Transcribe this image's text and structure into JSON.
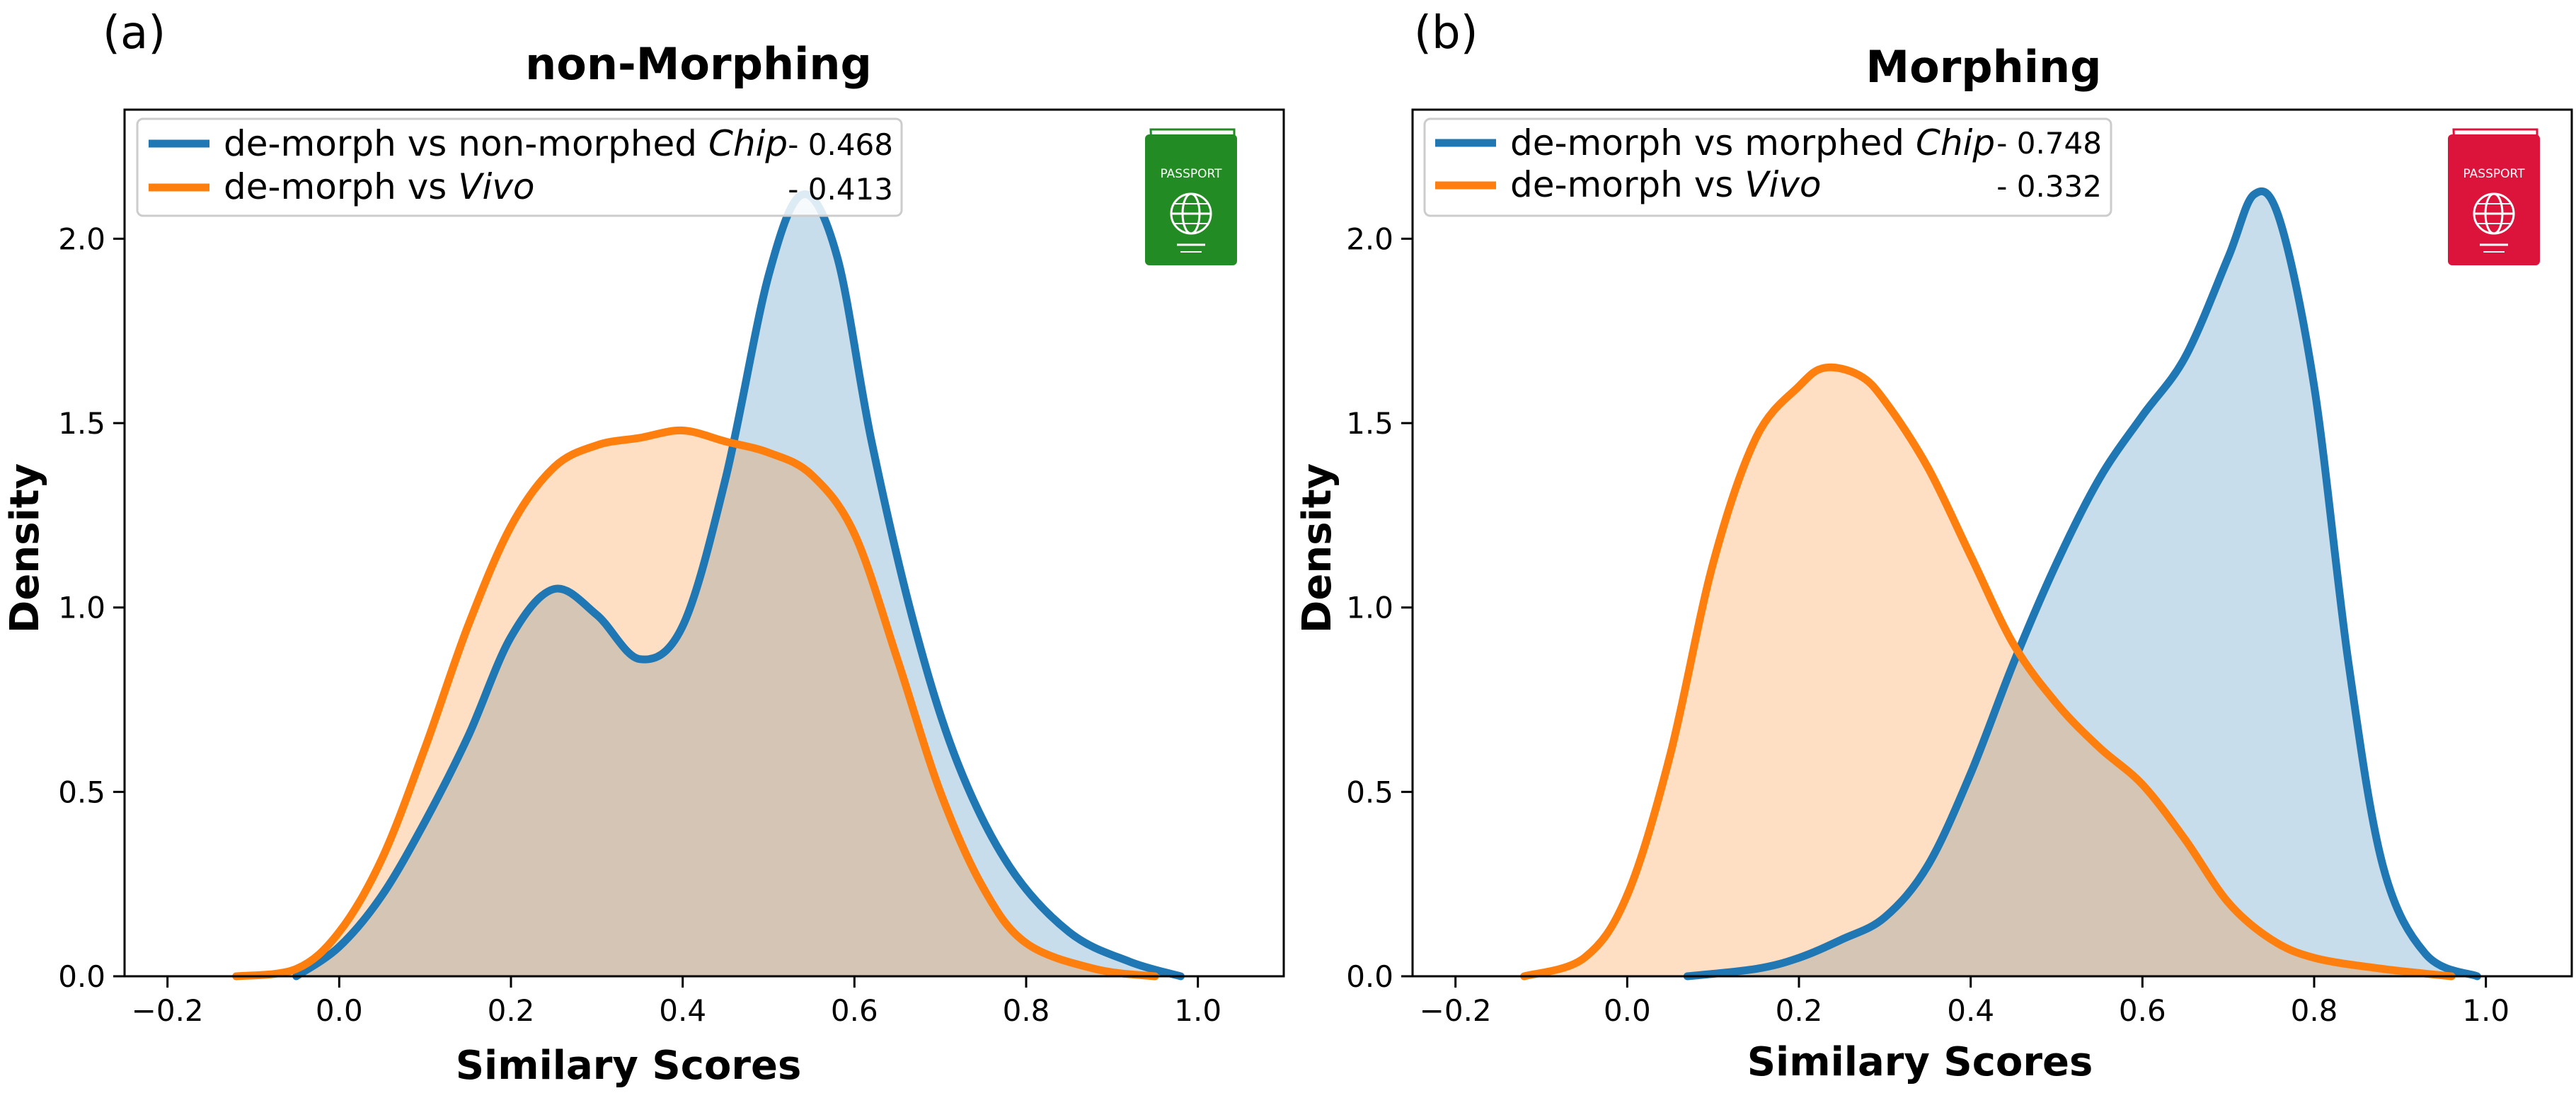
{
  "colors": {
    "series_blue": "#1f77b4",
    "series_orange": "#ff7f0e",
    "fill_blue": "#c6dcec",
    "fill_orange": "#fdd9bb",
    "fill_overlap": "#d4c3b3",
    "passport_green": "#238b23",
    "passport_red": "#dc143c"
  },
  "icons": {
    "a": {
      "name": "passport-icon",
      "label": "PASSPORT",
      "color": "#238b23"
    },
    "b": {
      "name": "passport-icon",
      "label": "PASSPORT",
      "color": "#dc143c"
    }
  },
  "chart_data": [
    {
      "panel_label": "(a)",
      "type": "area",
      "title": "non-Morphing",
      "xlabel": "Similary Scores",
      "ylabel": "Density",
      "xlim": [
        -0.25,
        1.1
      ],
      "ylim": [
        0,
        2.35
      ],
      "xticks": [
        -0.2,
        0.0,
        0.2,
        0.4,
        0.6,
        0.8,
        1.0
      ],
      "xtick_labels": [
        "−0.2",
        "0.0",
        "0.2",
        "0.4",
        "0.6",
        "0.8",
        "1.0"
      ],
      "yticks": [
        0.0,
        0.5,
        1.0,
        1.5,
        2.0
      ],
      "ytick_labels": [
        "0.0",
        "0.5",
        "1.0",
        "1.5",
        "2.0"
      ],
      "grid": false,
      "legend_position": "top-left",
      "series": [
        {
          "name_prefix": "de-morph vs non-morphed ",
          "name_italic": "Chip",
          "score": "- 0.468",
          "color": "#1f77b4",
          "points": [
            [
              -0.05,
              0.0
            ],
            [
              0.0,
              0.08
            ],
            [
              0.05,
              0.22
            ],
            [
              0.1,
              0.42
            ],
            [
              0.15,
              0.65
            ],
            [
              0.2,
              0.92
            ],
            [
              0.25,
              1.05
            ],
            [
              0.3,
              0.98
            ],
            [
              0.35,
              0.86
            ],
            [
              0.4,
              0.95
            ],
            [
              0.45,
              1.35
            ],
            [
              0.5,
              1.9
            ],
            [
              0.54,
              2.12
            ],
            [
              0.58,
              1.95
            ],
            [
              0.62,
              1.45
            ],
            [
              0.67,
              0.95
            ],
            [
              0.72,
              0.58
            ],
            [
              0.78,
              0.3
            ],
            [
              0.85,
              0.12
            ],
            [
              0.92,
              0.04
            ],
            [
              0.98,
              0.0
            ]
          ]
        },
        {
          "name_prefix": "de-morph vs ",
          "name_italic": "Vivo",
          "score": "- 0.413",
          "color": "#ff7f0e",
          "points": [
            [
              -0.12,
              0.0
            ],
            [
              -0.05,
              0.02
            ],
            [
              0.0,
              0.12
            ],
            [
              0.05,
              0.32
            ],
            [
              0.1,
              0.62
            ],
            [
              0.15,
              0.95
            ],
            [
              0.2,
              1.22
            ],
            [
              0.25,
              1.38
            ],
            [
              0.3,
              1.44
            ],
            [
              0.35,
              1.46
            ],
            [
              0.4,
              1.48
            ],
            [
              0.45,
              1.45
            ],
            [
              0.5,
              1.42
            ],
            [
              0.55,
              1.36
            ],
            [
              0.6,
              1.2
            ],
            [
              0.65,
              0.86
            ],
            [
              0.7,
              0.5
            ],
            [
              0.75,
              0.24
            ],
            [
              0.8,
              0.09
            ],
            [
              0.88,
              0.02
            ],
            [
              0.95,
              0.0
            ]
          ]
        }
      ]
    },
    {
      "panel_label": "(b)",
      "type": "area",
      "title": "Morphing",
      "xlabel": "Similary Scores",
      "ylabel": "Density",
      "xlim": [
        -0.25,
        1.1
      ],
      "ylim": [
        0,
        2.35
      ],
      "xticks": [
        -0.2,
        0.0,
        0.2,
        0.4,
        0.6,
        0.8,
        1.0
      ],
      "xtick_labels": [
        "−0.2",
        "0.0",
        "0.2",
        "0.4",
        "0.6",
        "0.8",
        "1.0"
      ],
      "yticks": [
        0.0,
        0.5,
        1.0,
        1.5,
        2.0
      ],
      "ytick_labels": [
        "0.0",
        "0.5",
        "1.0",
        "1.5",
        "2.0"
      ],
      "grid": false,
      "legend_position": "top-left",
      "series": [
        {
          "name_prefix": "de-morph vs morphed ",
          "name_italic": "Chip",
          "score": "- 0.748",
          "color": "#1f77b4",
          "points": [
            [
              0.07,
              0.0
            ],
            [
              0.15,
              0.02
            ],
            [
              0.2,
              0.05
            ],
            [
              0.25,
              0.1
            ],
            [
              0.3,
              0.16
            ],
            [
              0.35,
              0.3
            ],
            [
              0.4,
              0.55
            ],
            [
              0.45,
              0.85
            ],
            [
              0.5,
              1.12
            ],
            [
              0.55,
              1.35
            ],
            [
              0.6,
              1.52
            ],
            [
              0.65,
              1.68
            ],
            [
              0.7,
              1.95
            ],
            [
              0.73,
              2.12
            ],
            [
              0.76,
              2.05
            ],
            [
              0.8,
              1.6
            ],
            [
              0.84,
              0.85
            ],
            [
              0.88,
              0.3
            ],
            [
              0.93,
              0.06
            ],
            [
              0.99,
              0.0
            ]
          ]
        },
        {
          "name_prefix": "de-morph vs ",
          "name_italic": "Vivo",
          "score": "- 0.332",
          "color": "#ff7f0e",
          "points": [
            [
              -0.12,
              0.0
            ],
            [
              -0.05,
              0.05
            ],
            [
              0.0,
              0.22
            ],
            [
              0.05,
              0.6
            ],
            [
              0.1,
              1.12
            ],
            [
              0.15,
              1.46
            ],
            [
              0.2,
              1.6
            ],
            [
              0.23,
              1.65
            ],
            [
              0.27,
              1.63
            ],
            [
              0.3,
              1.56
            ],
            [
              0.35,
              1.38
            ],
            [
              0.4,
              1.14
            ],
            [
              0.45,
              0.9
            ],
            [
              0.5,
              0.74
            ],
            [
              0.55,
              0.62
            ],
            [
              0.6,
              0.52
            ],
            [
              0.65,
              0.37
            ],
            [
              0.7,
              0.2
            ],
            [
              0.75,
              0.1
            ],
            [
              0.8,
              0.05
            ],
            [
              0.88,
              0.02
            ],
            [
              0.96,
              0.0
            ]
          ]
        }
      ]
    }
  ]
}
